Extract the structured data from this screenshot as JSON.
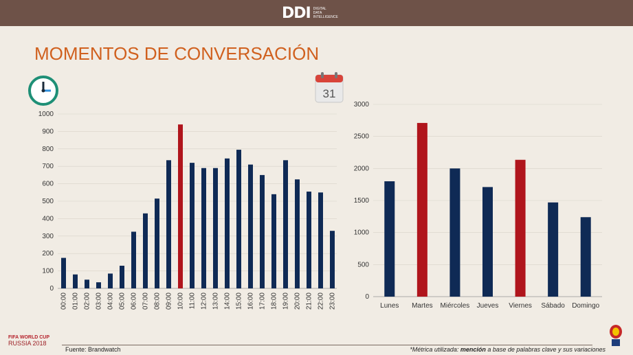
{
  "header": {
    "logo_text": "DDI",
    "logo_subtitle_lines": [
      "DIGITAL",
      "DATA",
      "INTELLIGENCE"
    ]
  },
  "title": "MOMENTOS DE CONVERSACIÓN",
  "icons": {
    "clock": "clock-icon",
    "calendar": "calendar-icon",
    "calendar_day": "31",
    "trophy": "trophy-icon"
  },
  "colors": {
    "bar": "#0f2a55",
    "highlight": "#b0151c",
    "title": "#d0601e"
  },
  "chart_data": [
    {
      "type": "bar",
      "title": "",
      "xlabel": "",
      "ylabel": "",
      "categories": [
        "00:00",
        "01:00",
        "02:00",
        "03:00",
        "04:00",
        "05:00",
        "06:00",
        "07:00",
        "08:00",
        "09:00",
        "10:00",
        "11:00",
        "12:00",
        "13:00",
        "14:00",
        "15:00",
        "16:00",
        "17:00",
        "18:00",
        "19:00",
        "20:00",
        "21:00",
        "22:00",
        "23:00"
      ],
      "values": [
        175,
        80,
        50,
        35,
        85,
        130,
        325,
        430,
        515,
        735,
        940,
        720,
        690,
        690,
        745,
        795,
        710,
        650,
        540,
        735,
        625,
        555,
        550,
        330
      ],
      "highlight_index": 10,
      "ylim": [
        0,
        1000
      ],
      "yticks": [
        0,
        100,
        200,
        300,
        400,
        500,
        600,
        700,
        800,
        900,
        1000
      ]
    },
    {
      "type": "bar",
      "title": "",
      "xlabel": "",
      "ylabel": "",
      "categories": [
        "Lunes",
        "Martes",
        "Miércoles",
        "Jueves",
        "Viernes",
        "Sábado",
        "Domingo"
      ],
      "values": [
        1800,
        2710,
        2000,
        1710,
        2135,
        1470,
        1240
      ],
      "highlight_indices": [
        1,
        4
      ],
      "ylim": [
        0,
        3000
      ],
      "yticks": [
        0,
        500,
        1000,
        1500,
        2000,
        2500,
        3000
      ]
    }
  ],
  "footer": {
    "source": "Fuente: Brandwatch",
    "metric_prefix": "*Métrica utilizada: ",
    "metric_bold": "mención",
    "metric_suffix": " a base de palabras clave y sus variaciones"
  },
  "fifa": {
    "line1": "FIFA WORLD CUP",
    "line2": "RUSSIA 2018"
  }
}
